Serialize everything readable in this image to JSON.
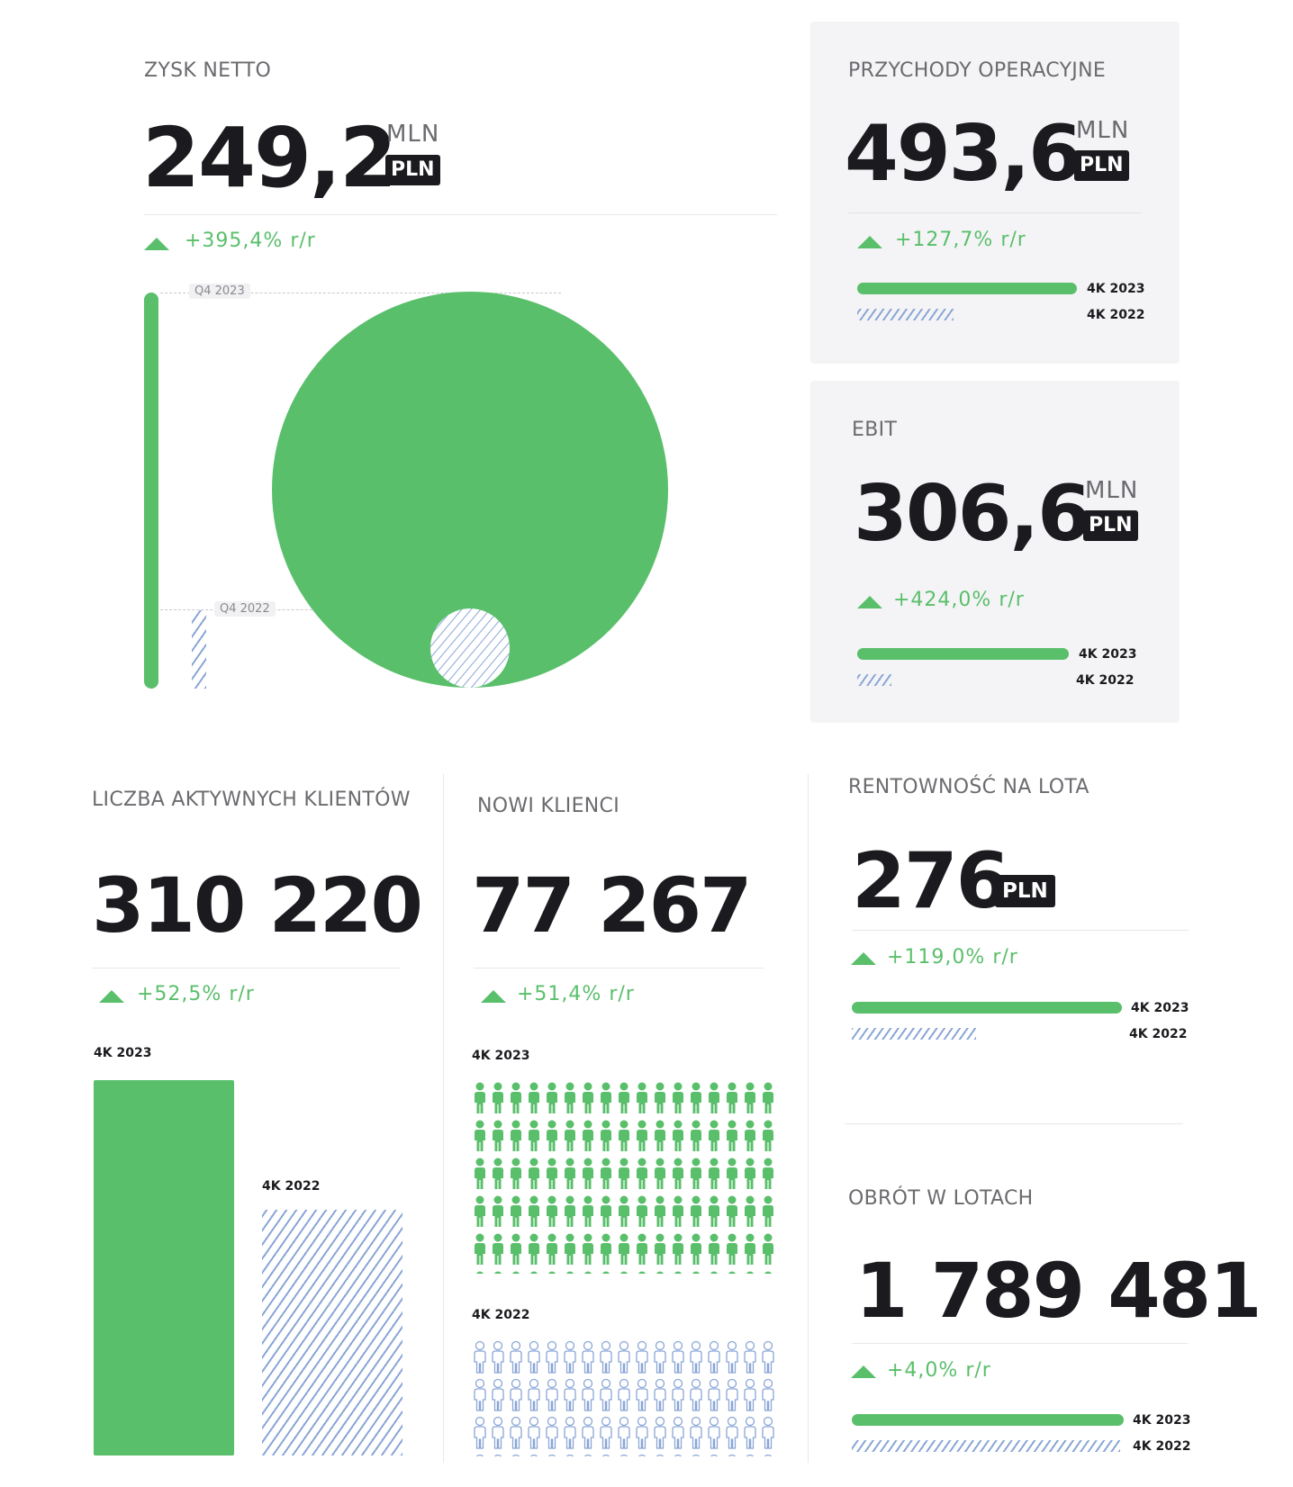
{
  "net_profit": {
    "label": "ZYSK NETTO",
    "value": "249,2",
    "unit_scale": "MLN",
    "currency": "PLN",
    "change": "+395,4% r/r",
    "tag_2023": "Q4 2023",
    "tag_2022": "Q4 2022"
  },
  "operating_revenue": {
    "label": "PRZYCHODY OPERACYJNE",
    "value": "493,6",
    "unit_scale": "MLN",
    "currency": "PLN",
    "change": "+127,7% r/r",
    "label_2023": "4K 2023",
    "label_2022": "4K 2022"
  },
  "ebit": {
    "label": "EBIT",
    "value": "306,6",
    "unit_scale": "MLN",
    "currency": "PLN",
    "change": "+424,0% r/r",
    "label_2023": "4K 2023",
    "label_2022": "4K 2022"
  },
  "active_clients": {
    "label": "LICZBA AKTYWNYCH KLIENTÓW",
    "value": "310 220",
    "change": "+52,5% r/r",
    "label_2023": "4K 2023",
    "label_2022": "4K 2022"
  },
  "new_clients": {
    "label": "NOWI KLIENCI",
    "value": "77 267",
    "change": "+51,4% r/r",
    "label_2023": "4K 2023",
    "label_2022": "4K 2022"
  },
  "profit_per_lot": {
    "label": "RENTOWNOŚĆ NA LOTA",
    "value": "276",
    "currency": "PLN",
    "change": "+119,0% r/r",
    "label_2023": "4K 2023",
    "label_2022": "4K 2022"
  },
  "lot_turnover": {
    "label": "OBRÓT W LOTACH",
    "value": "1 789 481",
    "change": "+4,0% r/r",
    "label_2023": "4K 2023",
    "label_2022": "4K 2022"
  },
  "colors": {
    "green": "#5abf6b",
    "hatch": "#8aa6d6",
    "dark": "#1b1b1f",
    "panel": "#f4f4f6"
  },
  "chart_data": [
    {
      "type": "bar",
      "title": "ZYSK NETTO",
      "categories": [
        "Q4 2023",
        "Q4 2022"
      ],
      "values": [
        249.2,
        50.3
      ],
      "unit": "MLN PLN"
    },
    {
      "type": "bar",
      "title": "PRZYCHODY OPERACYJNE",
      "categories": [
        "4K 2023",
        "4K 2022"
      ],
      "values": [
        493.6,
        216.8
      ],
      "unit": "MLN PLN"
    },
    {
      "type": "bar",
      "title": "EBIT",
      "categories": [
        "4K 2023",
        "4K 2022"
      ],
      "values": [
        306.6,
        58.5
      ],
      "unit": "MLN PLN"
    },
    {
      "type": "bar",
      "title": "LICZBA AKTYWNYCH KLIENTÓW",
      "categories": [
        "4K 2023",
        "4K 2022"
      ],
      "values": [
        310220,
        203420
      ]
    },
    {
      "type": "bar",
      "title": "NOWI KLIENCI",
      "categories": [
        "4K 2023",
        "4K 2022"
      ],
      "values": [
        77267,
        51032
      ]
    },
    {
      "type": "bar",
      "title": "RENTOWNOŚĆ NA LOTA",
      "categories": [
        "4K 2023",
        "4K 2022"
      ],
      "values": [
        276,
        126
      ],
      "unit": "PLN"
    },
    {
      "type": "bar",
      "title": "OBRÓT W LOTACH",
      "categories": [
        "4K 2023",
        "4K 2022"
      ],
      "values": [
        1789481,
        1720655
      ]
    }
  ],
  "icons": {
    "up": "triangle-up-icon",
    "person": "person-icon"
  }
}
